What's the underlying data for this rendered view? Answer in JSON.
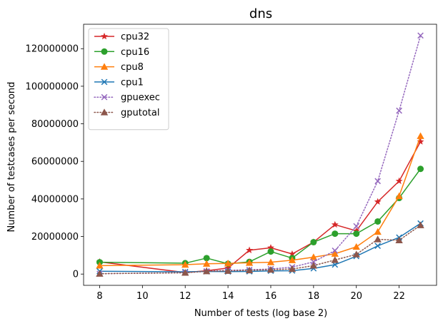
{
  "chart_data": {
    "type": "line",
    "title": "dns",
    "xlabel": "Number of tests (log base 2)",
    "ylabel": "Number of testcases per second",
    "xlim": [
      7.25,
      23.75
    ],
    "ylim": [
      -6000000,
      133000000
    ],
    "xticks": [
      8,
      10,
      12,
      14,
      16,
      18,
      20,
      22
    ],
    "yticks": [
      0,
      20000000,
      40000000,
      60000000,
      80000000,
      100000000,
      120000000
    ],
    "grid": false,
    "legend_position": "upper-left",
    "x": [
      8,
      12,
      13,
      14,
      15,
      16,
      17,
      18,
      19,
      20,
      21,
      22,
      23
    ],
    "series": [
      {
        "name": "cpu32",
        "color": "#d62728",
        "marker": "star",
        "linestyle": "solid",
        "values": [
          6500000,
          800000,
          1800000,
          3200000,
          12700000,
          14000000,
          10700000,
          17000000,
          26300000,
          23000000,
          38500000,
          49500000,
          70500000
        ]
      },
      {
        "name": "cpu16",
        "color": "#2ca02c",
        "marker": "circle",
        "linestyle": "solid",
        "values": [
          6300000,
          5800000,
          8500000,
          5500000,
          6500000,
          12000000,
          8500000,
          17000000,
          21500000,
          21500000,
          28000000,
          40500000,
          56000000
        ]
      },
      {
        "name": "cpu8",
        "color": "#ff7f0e",
        "marker": "triangle",
        "linestyle": "solid",
        "values": [
          4500000,
          5000000,
          5500000,
          5700000,
          6000000,
          6300000,
          7400000,
          9000000,
          10800000,
          14500000,
          22500000,
          41500000,
          73500000
        ]
      },
      {
        "name": "cpu1",
        "color": "#1f77b4",
        "marker": "x",
        "linestyle": "solid",
        "values": [
          1500000,
          1200000,
          1400000,
          1300000,
          1400000,
          1700000,
          1800000,
          3000000,
          5000000,
          9500000,
          15000000,
          19500000,
          27000000
        ]
      },
      {
        "name": "gpuexec",
        "color": "#9467bd",
        "marker": "x",
        "linestyle": "dotted",
        "values": [
          200000,
          700000,
          1500000,
          2000000,
          2300000,
          2700000,
          3700000,
          6500000,
          12500000,
          25500000,
          49500000,
          87000000,
          127000000
        ]
      },
      {
        "name": "gputotal",
        "color": "#8c564b",
        "marker": "triangle",
        "linestyle": "dotted",
        "values": [
          200000,
          700000,
          1500000,
          1700000,
          2000000,
          2300000,
          2700000,
          4500000,
          7500000,
          10500000,
          18500000,
          18000000,
          26000000
        ]
      }
    ]
  }
}
